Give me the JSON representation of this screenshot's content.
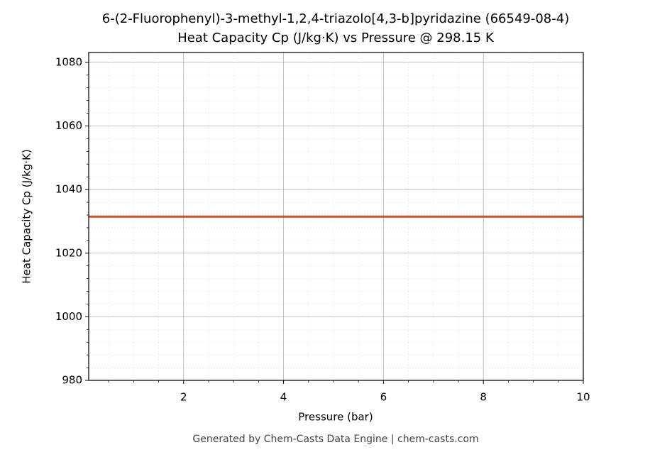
{
  "chart_data": {
    "type": "line",
    "title": "6-(2-Fluorophenyl)-3-methyl-1,2,4-triazolo[4,3-b]pyridazine (66549-08-4)",
    "subtitle": "Heat Capacity Cp (J/kg·K) vs Pressure @ 298.15 K",
    "x_label": "Pressure (bar)",
    "y_label": "Heat Capacity Cp (J/kg·K)",
    "footer": "Generated by Chem-Casts Data Engine | chem-casts.com",
    "x": [
      0.1,
      10
    ],
    "series": [
      {
        "name": "Cp",
        "color": "#c9522a",
        "values": [
          1031.5,
          1031.5
        ]
      }
    ],
    "xlim": [
      0.1,
      10
    ],
    "ylim": [
      980,
      1083.1
    ],
    "xticks": [
      2,
      4,
      6,
      8,
      10
    ],
    "yticks": [
      980,
      1000,
      1020,
      1040,
      1060,
      1080
    ],
    "xminorticks": [
      0.5,
      1,
      1.5,
      2.5,
      3,
      3.5,
      4.5,
      5,
      5.5,
      6.5,
      7,
      7.5,
      8.5,
      9,
      9.5
    ],
    "yminorticks": [
      984,
      988,
      992,
      996,
      1004,
      1008,
      1012,
      1016,
      1024,
      1028,
      1032,
      1036,
      1044,
      1048,
      1052,
      1056,
      1064,
      1068,
      1072,
      1076
    ],
    "grid": true
  }
}
